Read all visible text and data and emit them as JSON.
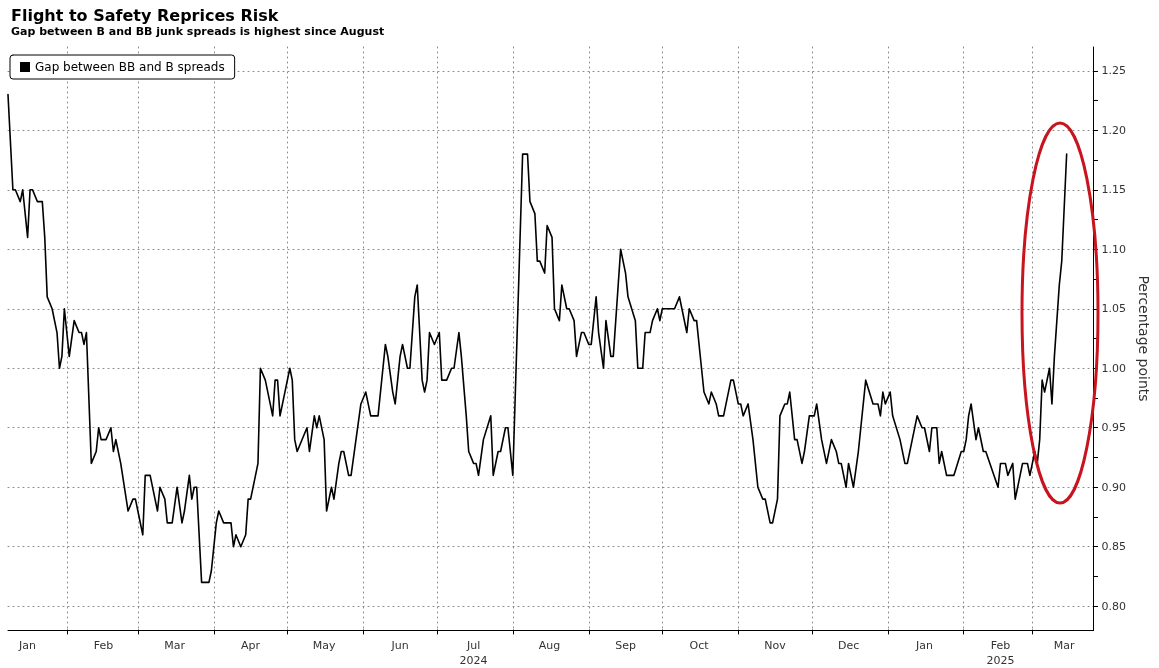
{
  "chart_data": {
    "type": "line",
    "title": "Flight to Safety Reprices Risk",
    "subtitle": "Gap between B and BB junk spreads is highest since August",
    "ylabel": "Percentage points",
    "x": [
      "2024-01-08",
      "2024-01-10",
      "2024-01-11",
      "2024-01-13",
      "2024-01-14",
      "2024-01-16",
      "2024-01-17",
      "2024-01-18",
      "2024-01-20",
      "2024-01-22",
      "2024-01-23",
      "2024-01-24",
      "2024-01-26",
      "2024-01-28",
      "2024-01-29",
      "2024-01-30",
      "2024-01-31",
      "2024-02-02",
      "2024-02-04",
      "2024-02-06",
      "2024-02-07",
      "2024-02-08",
      "2024-02-09",
      "2024-02-11",
      "2024-02-13",
      "2024-02-14",
      "2024-02-15",
      "2024-02-17",
      "2024-02-19",
      "2024-02-20",
      "2024-02-21",
      "2024-02-23",
      "2024-02-26",
      "2024-02-28",
      "2024-02-29",
      "2024-03-01",
      "2024-03-03",
      "2024-03-04",
      "2024-03-06",
      "2024-03-09",
      "2024-03-10",
      "2024-03-12",
      "2024-03-13",
      "2024-03-15",
      "2024-03-17",
      "2024-03-19",
      "2024-03-20",
      "2024-03-22",
      "2024-03-23",
      "2024-03-24",
      "2024-03-25",
      "2024-03-27",
      "2024-03-30",
      "2024-03-31",
      "2024-04-02",
      "2024-04-03",
      "2024-04-05",
      "2024-04-08",
      "2024-04-09",
      "2024-04-10",
      "2024-04-12",
      "2024-04-14",
      "2024-04-15",
      "2024-04-16",
      "2024-04-18",
      "2024-04-19",
      "2024-04-20",
      "2024-04-22",
      "2024-04-24",
      "2024-04-25",
      "2024-04-26",
      "2024-04-27",
      "2024-04-28",
      "2024-04-30",
      "2024-05-02",
      "2024-05-03",
      "2024-05-04",
      "2024-05-05",
      "2024-05-09",
      "2024-05-10",
      "2024-05-12",
      "2024-05-13",
      "2024-05-14",
      "2024-05-16",
      "2024-05-17",
      "2024-05-19",
      "2024-05-20",
      "2024-05-22",
      "2024-05-23",
      "2024-05-24",
      "2024-05-26",
      "2024-05-27",
      "2024-05-29",
      "2024-05-31",
      "2024-06-02",
      "2024-06-04",
      "2024-06-07",
      "2024-06-09",
      "2024-06-10",
      "2024-06-11",
      "2024-06-13",
      "2024-06-14",
      "2024-06-16",
      "2024-06-17",
      "2024-06-19",
      "2024-06-20",
      "2024-06-22",
      "2024-06-23",
      "2024-06-25",
      "2024-06-26",
      "2024-06-27",
      "2024-06-28",
      "2024-06-30",
      "2024-07-02",
      "2024-07-03",
      "2024-07-05",
      "2024-07-07",
      "2024-07-08",
      "2024-07-10",
      "2024-07-11",
      "2024-07-13",
      "2024-07-14",
      "2024-07-16",
      "2024-07-17",
      "2024-07-18",
      "2024-07-20",
      "2024-07-23",
      "2024-07-24",
      "2024-07-26",
      "2024-07-27",
      "2024-07-28",
      "2024-07-29",
      "2024-07-30",
      "2024-08-01",
      "2024-08-05",
      "2024-08-07",
      "2024-08-08",
      "2024-08-10",
      "2024-08-11",
      "2024-08-12",
      "2024-08-14",
      "2024-08-15",
      "2024-08-17",
      "2024-08-18",
      "2024-08-20",
      "2024-08-21",
      "2024-08-23",
      "2024-08-24",
      "2024-08-26",
      "2024-08-27",
      "2024-08-28",
      "2024-08-29",
      "2024-08-30",
      "2024-09-01",
      "2024-09-02",
      "2024-09-04",
      "2024-09-05",
      "2024-09-07",
      "2024-09-08",
      "2024-09-10",
      "2024-09-11",
      "2024-09-13",
      "2024-09-14",
      "2024-09-16",
      "2024-09-17",
      "2024-09-20",
      "2024-09-21",
      "2024-09-23",
      "2024-09-24",
      "2024-09-26",
      "2024-09-27",
      "2024-09-29",
      "2024-09-30",
      "2024-10-01",
      "2024-10-06",
      "2024-10-08",
      "2024-10-09",
      "2024-10-11",
      "2024-10-12",
      "2024-10-14",
      "2024-10-15",
      "2024-10-17",
      "2024-10-18",
      "2024-10-20",
      "2024-10-21",
      "2024-10-23",
      "2024-10-24",
      "2024-10-26",
      "2024-10-27",
      "2024-10-29",
      "2024-10-30",
      "2024-11-01",
      "2024-11-02",
      "2024-11-03",
      "2024-11-05",
      "2024-11-07",
      "2024-11-09",
      "2024-11-11",
      "2024-11-12",
      "2024-11-14",
      "2024-11-15",
      "2024-11-17",
      "2024-11-18",
      "2024-11-20",
      "2024-11-21",
      "2024-11-22",
      "2024-11-24",
      "2024-11-25",
      "2024-11-27",
      "2024-11-28",
      "2024-11-30",
      "2024-12-02",
      "2024-12-03",
      "2024-12-05",
      "2024-12-07",
      "2024-12-09",
      "2024-12-11",
      "2024-12-12",
      "2024-12-13",
      "2024-12-15",
      "2024-12-16",
      "2024-12-18",
      "2024-12-20",
      "2024-12-23",
      "2024-12-26",
      "2024-12-28",
      "2024-12-29",
      "2024-12-30",
      "2024-12-31",
      "2025-01-02",
      "2025-01-03",
      "2025-01-06",
      "2025-01-08",
      "2025-01-09",
      "2025-01-13",
      "2025-01-15",
      "2025-01-16",
      "2025-01-18",
      "2025-01-19",
      "2025-01-21",
      "2025-01-22",
      "2025-01-23",
      "2025-01-25",
      "2025-01-28",
      "2025-01-31",
      "2025-02-01",
      "2025-02-02",
      "2025-02-03",
      "2025-02-04",
      "2025-02-06",
      "2025-02-07",
      "2025-02-09",
      "2025-02-10",
      "2025-02-15",
      "2025-02-16",
      "2025-02-18",
      "2025-02-19",
      "2025-02-21",
      "2025-02-22",
      "2025-02-24",
      "2025-02-25",
      "2025-02-27",
      "2025-02-28",
      "2025-03-02",
      "2025-03-03",
      "2025-03-04",
      "2025-03-05",
      "2025-03-06",
      "2025-03-08",
      "2025-03-09",
      "2025-03-10",
      "2025-03-12",
      "2025-03-13",
      "2025-03-15"
    ],
    "series": [
      {
        "name": "Gap between BB and B spreads",
        "color": "#000000",
        "values": [
          1.23,
          1.15,
          1.15,
          1.14,
          1.15,
          1.11,
          1.15,
          1.15,
          1.14,
          1.14,
          1.11,
          1.06,
          1.05,
          1.03,
          1.0,
          1.01,
          1.05,
          1.01,
          1.04,
          1.03,
          1.03,
          1.02,
          1.03,
          0.92,
          0.93,
          0.95,
          0.94,
          0.94,
          0.95,
          0.93,
          0.94,
          0.92,
          0.88,
          0.89,
          0.89,
          0.88,
          0.86,
          0.91,
          0.91,
          0.88,
          0.9,
          0.89,
          0.87,
          0.87,
          0.9,
          0.87,
          0.88,
          0.91,
          0.89,
          0.9,
          0.9,
          0.82,
          0.82,
          0.83,
          0.87,
          0.88,
          0.87,
          0.87,
          0.85,
          0.86,
          0.85,
          0.86,
          0.89,
          0.89,
          0.91,
          0.92,
          1.0,
          0.99,
          0.97,
          0.96,
          0.99,
          0.99,
          0.96,
          0.98,
          1.0,
          0.99,
          0.94,
          0.93,
          0.95,
          0.93,
          0.96,
          0.95,
          0.96,
          0.94,
          0.88,
          0.9,
          0.89,
          0.92,
          0.93,
          0.93,
          0.91,
          0.91,
          0.94,
          0.97,
          0.98,
          0.96,
          0.96,
          1.0,
          1.02,
          1.01,
          0.98,
          0.97,
          1.01,
          1.02,
          1.0,
          1.0,
          1.06,
          1.07,
          0.99,
          0.98,
          0.99,
          1.03,
          1.02,
          1.03,
          0.99,
          0.99,
          1.0,
          1.0,
          1.03,
          1.01,
          0.96,
          0.93,
          0.92,
          0.92,
          0.91,
          0.94,
          0.96,
          0.91,
          0.93,
          0.93,
          0.94,
          0.95,
          0.95,
          0.91,
          1.18,
          1.18,
          1.14,
          1.13,
          1.09,
          1.09,
          1.08,
          1.12,
          1.11,
          1.05,
          1.04,
          1.07,
          1.05,
          1.05,
          1.04,
          1.01,
          1.02,
          1.03,
          1.03,
          1.02,
          1.02,
          1.06,
          1.03,
          1.0,
          1.04,
          1.01,
          1.01,
          1.07,
          1.1,
          1.08,
          1.06,
          1.04,
          1.0,
          1.0,
          1.03,
          1.03,
          1.04,
          1.05,
          1.04,
          1.05,
          1.05,
          1.06,
          1.05,
          1.03,
          1.05,
          1.04,
          1.04,
          1.0,
          0.98,
          0.97,
          0.98,
          0.97,
          0.96,
          0.96,
          0.97,
          0.99,
          0.99,
          0.97,
          0.97,
          0.96,
          0.97,
          0.94,
          0.9,
          0.89,
          0.89,
          0.87,
          0.87,
          0.89,
          0.96,
          0.97,
          0.97,
          0.98,
          0.94,
          0.94,
          0.92,
          0.93,
          0.96,
          0.96,
          0.97,
          0.94,
          0.92,
          0.94,
          0.93,
          0.92,
          0.92,
          0.9,
          0.92,
          0.9,
          0.93,
          0.99,
          0.97,
          0.97,
          0.96,
          0.98,
          0.97,
          0.98,
          0.96,
          0.94,
          0.92,
          0.92,
          0.96,
          0.95,
          0.95,
          0.93,
          0.95,
          0.95,
          0.92,
          0.93,
          0.91,
          0.91,
          0.93,
          0.93,
          0.94,
          0.96,
          0.97,
          0.94,
          0.95,
          0.93,
          0.93,
          0.9,
          0.92,
          0.92,
          0.91,
          0.92,
          0.89,
          0.91,
          0.92,
          0.92,
          0.91,
          0.93,
          0.92,
          0.94,
          0.99,
          0.98,
          1.0,
          0.97,
          1.01,
          1.07,
          1.09,
          1.18
        ]
      }
    ],
    "xlim": [
      "2024-01-08",
      "2025-03-26"
    ],
    "xticks": [
      {
        "value": "2024-01-16",
        "label": "Jan"
      },
      {
        "value": "2024-02-01",
        "label": null
      },
      {
        "value": "2024-02-16",
        "label": "Feb"
      },
      {
        "value": "2024-03-01",
        "label": null
      },
      {
        "value": "2024-03-16",
        "label": "Mar"
      },
      {
        "value": "2024-04-01",
        "label": null
      },
      {
        "value": "2024-04-16",
        "label": "Apr"
      },
      {
        "value": "2024-05-01",
        "label": null
      },
      {
        "value": "2024-05-16",
        "label": "May"
      },
      {
        "value": "2024-06-01",
        "label": null
      },
      {
        "value": "2024-06-16",
        "label": "Jun"
      },
      {
        "value": "2024-07-01",
        "label": null
      },
      {
        "value": "2024-07-16",
        "label": "Jul\n2024"
      },
      {
        "value": "2024-08-01",
        "label": null
      },
      {
        "value": "2024-08-16",
        "label": "Aug"
      },
      {
        "value": "2024-09-01",
        "label": null
      },
      {
        "value": "2024-09-16",
        "label": "Sep"
      },
      {
        "value": "2024-10-01",
        "label": null
      },
      {
        "value": "2024-10-16",
        "label": "Oct"
      },
      {
        "value": "2024-11-01",
        "label": null
      },
      {
        "value": "2024-11-16",
        "label": "Nov"
      },
      {
        "value": "2024-12-01",
        "label": null
      },
      {
        "value": "2024-12-16",
        "label": "Dec"
      },
      {
        "value": "2025-01-01",
        "label": null
      },
      {
        "value": "2025-01-16",
        "label": "Jan"
      },
      {
        "value": "2025-02-01",
        "label": null
      },
      {
        "value": "2025-02-16",
        "label": "Feb\n2025"
      },
      {
        "value": "2025-03-01",
        "label": null
      },
      {
        "value": "2025-03-14",
        "label": "Mar"
      }
    ],
    "ylim": [
      0.78,
      1.27
    ],
    "yticks": [
      {
        "value": 0.8,
        "label": "0.80"
      },
      {
        "value": 0.825,
        "label": null
      },
      {
        "value": 0.85,
        "label": "0.85"
      },
      {
        "value": 0.875,
        "label": null
      },
      {
        "value": 0.9,
        "label": "0.90"
      },
      {
        "value": 0.925,
        "label": null
      },
      {
        "value": 0.95,
        "label": "0.95"
      },
      {
        "value": 0.975,
        "label": null
      },
      {
        "value": 1.0,
        "label": "1.00"
      },
      {
        "value": 1.025,
        "label": null
      },
      {
        "value": 1.05,
        "label": "1.05"
      },
      {
        "value": 1.075,
        "label": null
      },
      {
        "value": 1.1,
        "label": "1.10"
      },
      {
        "value": 1.125,
        "label": null
      },
      {
        "value": 1.15,
        "label": "1.15"
      },
      {
        "value": 1.175,
        "label": null
      },
      {
        "value": 1.2,
        "label": "1.20"
      },
      {
        "value": 1.225,
        "label": null
      },
      {
        "value": 1.25,
        "label": "1.25"
      }
    ],
    "grid": true,
    "legend": "top left",
    "marker": "none",
    "line_style": "solid"
  }
}
